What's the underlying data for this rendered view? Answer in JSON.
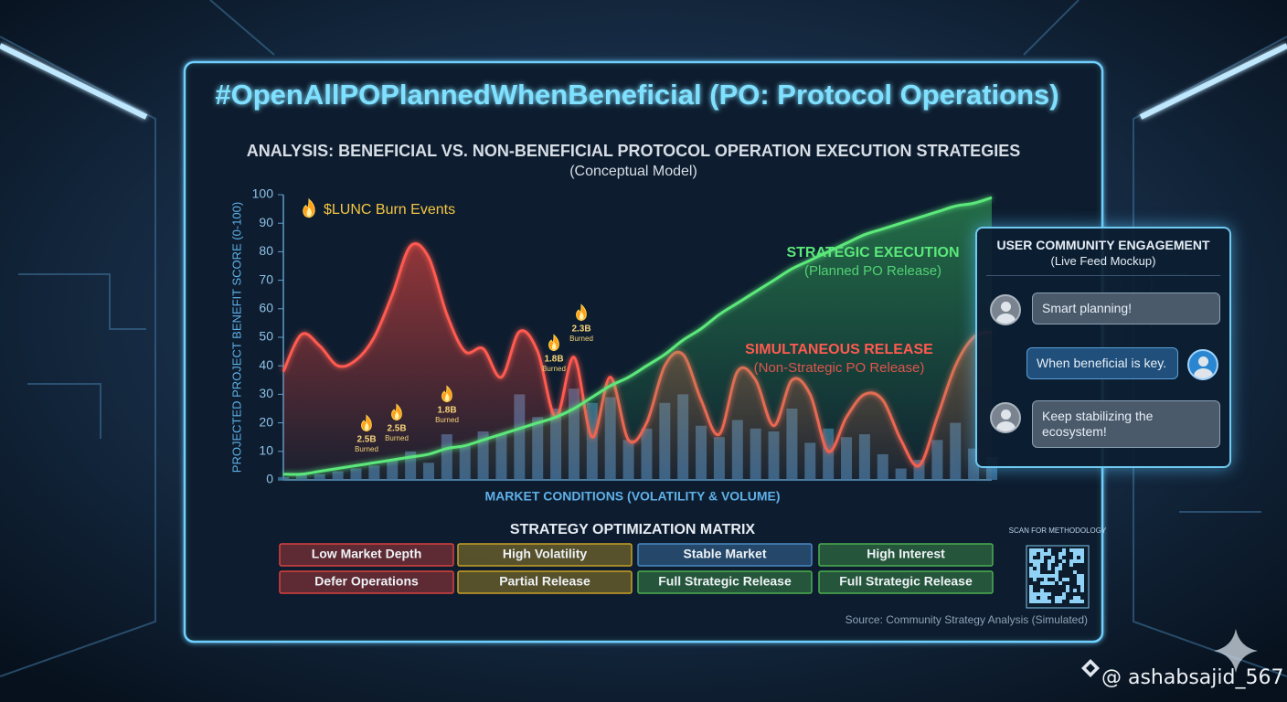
{
  "header": {
    "title": "#OpenAllPOPlannedWhenBeneficial (PO: Protocol Operations)"
  },
  "chart_data": {
    "type": "line",
    "title": "ANALYSIS: BENEFICIAL VS. NON-BENEFICIAL PROTOCOL OPERATION EXECUTION STRATEGIES",
    "subtitle": "(Conceptual Model)",
    "y_label": "PROJECTED PROJECT BENEFIT SCORE (0-100)",
    "x_label": "MARKET CONDITIONS (VOLATILITY & VOLUME)",
    "ylim": [
      0,
      100
    ],
    "yticks": [
      0,
      10,
      20,
      30,
      40,
      50,
      60,
      70,
      80,
      90,
      100
    ],
    "grid": false,
    "categories": [
      null,
      null,
      null,
      null,
      null,
      null,
      null,
      null,
      null,
      null,
      null,
      null,
      null,
      null,
      null,
      null,
      null,
      null,
      null,
      null,
      null,
      null,
      null,
      null,
      null,
      null,
      null,
      null,
      null,
      null,
      null,
      null,
      null,
      null,
      null,
      null,
      null,
      null,
      null,
      null
    ],
    "series": [
      {
        "kind": "bar",
        "color": "#3f77a8",
        "values": [
          1,
          2,
          2,
          3,
          4,
          5,
          7,
          10,
          6,
          16,
          12,
          17,
          16,
          30,
          22,
          25,
          32,
          27,
          29,
          14,
          18,
          27,
          30,
          19,
          15,
          21,
          18,
          17,
          25,
          13,
          18,
          15,
          16,
          9,
          4,
          7,
          14,
          20,
          11,
          8
        ]
      },
      {
        "name": "SIMULTANEOUS RELEASE",
        "note": "(Non-Strategic PO Release)",
        "color": "#ff5a4f",
        "values": [
          38,
          51,
          47,
          40,
          42,
          50,
          65,
          82,
          78,
          58,
          45,
          46,
          36,
          52,
          45,
          22,
          43,
          15,
          36,
          14,
          20,
          40,
          44,
          28,
          16,
          38,
          35,
          19,
          35,
          30,
          10,
          22,
          30,
          28,
          14,
          5,
          22,
          40,
          50,
          52
        ]
      },
      {
        "name": "STRATEGIC EXECUTION",
        "note": "(Planned PO Release)",
        "color": "#5be87a",
        "values": [
          2,
          2,
          3,
          4,
          5,
          6,
          7,
          8,
          9,
          11,
          12,
          14,
          16,
          18,
          20,
          22,
          25,
          29,
          33,
          36,
          40,
          44,
          49,
          53,
          58,
          62,
          66,
          70,
          74,
          77,
          80,
          83,
          86,
          88,
          90,
          92,
          94,
          96,
          97,
          99
        ]
      }
    ],
    "burn_legend": "$LUNC Burn Events",
    "annotations": [
      {
        "amount": "2.5B",
        "label": "Burned"
      },
      {
        "amount": "2.5B",
        "label": "Burned"
      },
      {
        "amount": "1.8B",
        "label": "Burned"
      },
      {
        "amount": "1.8B",
        "label": "Burned"
      },
      {
        "amount": "2.3B",
        "label": "Burned"
      }
    ]
  },
  "matrix": {
    "title": "STRATEGY OPTIMIZATION MATRIX",
    "rows": [
      [
        {
          "text": "Low Market Depth",
          "color": "#d9423f"
        },
        {
          "text": "High Volatility",
          "color": "#c9a227"
        },
        {
          "text": "Stable Market",
          "color": "#4a8ac4"
        },
        {
          "text": "High Interest",
          "color": "#4caf50"
        }
      ],
      [
        {
          "text": "Defer Operations",
          "color": "#d9423f"
        },
        {
          "text": "Partial Release",
          "color": "#c9a227"
        },
        {
          "text": "Full Strategic Release",
          "color": "#4caf50"
        },
        {
          "text": "Full Strategic Release",
          "color": "#4caf50"
        }
      ]
    ]
  },
  "chat": {
    "title": "USER COMMUNITY ENGAGEMENT",
    "subtitle": "(Live Feed Mockup)",
    "messages": [
      {
        "text": "Smart planning!",
        "side": "left"
      },
      {
        "text": "When beneficial is key.",
        "side": "right"
      },
      {
        "text": "Keep stabilizing the ecosystem!",
        "side": "left"
      }
    ]
  },
  "qr": {
    "caption": "SCAN FOR METHODOLOGY"
  },
  "source": "Source: Community Strategy Analysis (Simulated)",
  "watermark": "@ ashabsajid_567"
}
